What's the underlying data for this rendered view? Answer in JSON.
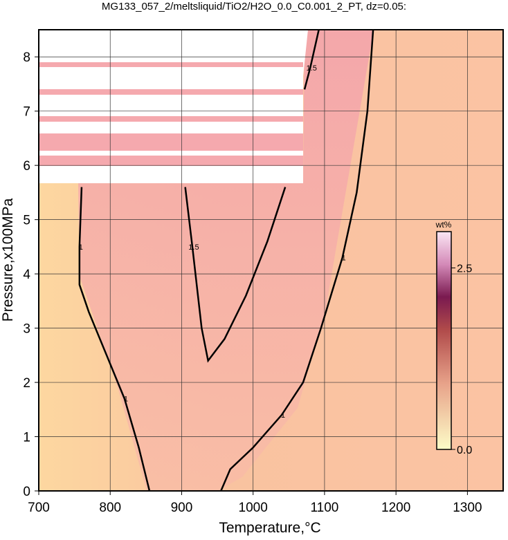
{
  "chart_data": {
    "type": "contour",
    "title": "MG133_057_2/meltsliquid/TiO2/H2O_0.0_C0.001_2_PT, dz=0.05:",
    "x_label": "Temperature,°C",
    "y_label": "Pressure,x100MPa",
    "xlim": [
      700,
      1350
    ],
    "ylim": [
      0,
      8.5
    ],
    "xticks": [
      700,
      800,
      900,
      1000,
      1100,
      1200,
      1300
    ],
    "yticks": [
      0,
      1,
      2,
      3,
      4,
      5,
      6,
      7,
      8
    ],
    "grid": true,
    "contours": [
      {
        "level": 1,
        "x": [
          855,
          840,
          820,
          795,
          770,
          757,
          757,
          760
        ],
        "y": [
          0,
          0.8,
          1.7,
          2.5,
          3.3,
          3.8,
          4.5,
          5.6
        ]
      },
      {
        "level": 1.5,
        "x": [
          905,
          915,
          928,
          937,
          960,
          990,
          1020,
          1045
        ],
        "y": [
          5.6,
          4.5,
          3.0,
          2.4,
          2.8,
          3.6,
          4.6,
          5.6
        ]
      },
      {
        "level": 1,
        "x": [
          955,
          968,
          1000,
          1040,
          1070,
          1095,
          1125,
          1145,
          1160,
          1168
        ],
        "y": [
          0,
          0.4,
          0.8,
          1.4,
          2.0,
          3.0,
          4.3,
          5.5,
          7.0,
          8.5
        ]
      },
      {
        "level": 1.5,
        "x": [
          1072,
          1080,
          1092
        ],
        "y": [
          7.4,
          7.8,
          8.5
        ]
      }
    ],
    "colorbar": {
      "label": "wt%",
      "lim": [
        0,
        3
      ],
      "ticks": [
        {
          "value": 0,
          "label": "0.0"
        },
        {
          "value": 2.5,
          "label": "2.5"
        }
      ]
    }
  }
}
